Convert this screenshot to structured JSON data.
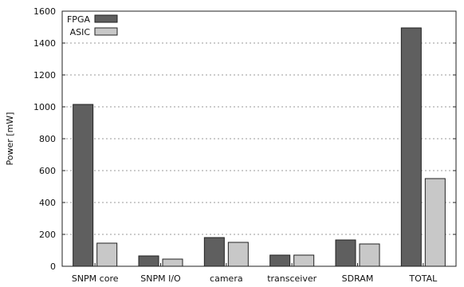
{
  "chart_data": {
    "type": "bar",
    "title": "",
    "xlabel": "",
    "ylabel": "Power [mW]",
    "ylim": [
      0,
      1600
    ],
    "yticks": [
      0,
      200,
      400,
      600,
      800,
      1000,
      1200,
      1400,
      1600
    ],
    "grid": true,
    "legend_position": "top-left",
    "categories": [
      "SNPM core",
      "SNPM I/O",
      "camera",
      "transceiver",
      "SDRAM",
      "TOTAL"
    ],
    "series": [
      {
        "name": "FPGA",
        "color": "#5f5f5f",
        "values": [
          1015,
          65,
          180,
          70,
          165,
          1495
        ]
      },
      {
        "name": "ASIC",
        "color": "#c8c8c8",
        "values": [
          145,
          45,
          150,
          70,
          140,
          550
        ]
      }
    ]
  }
}
